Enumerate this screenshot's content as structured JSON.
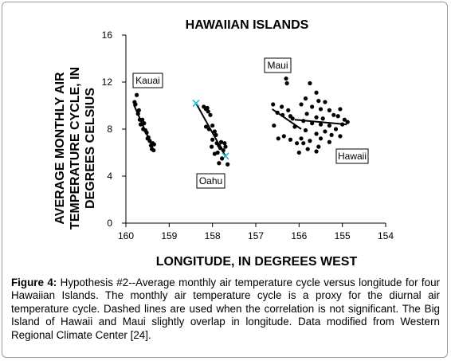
{
  "chart_data": {
    "type": "scatter",
    "title": "HAWAIIAN ISLANDS",
    "xlabel": "LONGITUDE, IN DEGREES WEST",
    "ylabel_lines": [
      "AVERAGE MONTHLY AIR",
      "TEMPERATURE CYCLE, IN",
      "DEGREES CELSIUS"
    ],
    "xlim": [
      160,
      154
    ],
    "ylim": [
      0,
      16
    ],
    "x_ticks": [
      "160",
      "159",
      "158",
      "157",
      "156",
      "155",
      "154"
    ],
    "y_ticks": [
      "0",
      "4",
      "8",
      "12",
      "16"
    ],
    "grid": false,
    "islands": [
      {
        "name": "Kauai",
        "points": [
          [
            159.75,
            10.9
          ],
          [
            159.8,
            10.3
          ],
          [
            159.78,
            10.1
          ],
          [
            159.7,
            9.6
          ],
          [
            159.72,
            9.3
          ],
          [
            159.68,
            8.8
          ],
          [
            159.62,
            8.8
          ],
          [
            159.66,
            8.4
          ],
          [
            159.58,
            8.5
          ],
          [
            159.55,
            7.9
          ],
          [
            159.52,
            7.7
          ],
          [
            159.48,
            7.3
          ],
          [
            159.45,
            7.0
          ],
          [
            159.42,
            6.6
          ],
          [
            159.4,
            6.3
          ],
          [
            159.38,
            6.8
          ],
          [
            159.36,
            6.2
          ],
          [
            159.35,
            6.7
          ],
          [
            159.5,
            7.2
          ],
          [
            159.6,
            8.0
          ]
        ],
        "fit": {
          "style": "solid",
          "from": [
            159.82,
            10.1
          ],
          "to": [
            159.38,
            6.4
          ]
        }
      },
      {
        "name": "Oahu",
        "points": [
          [
            158.2,
            9.9
          ],
          [
            158.15,
            9.7
          ],
          [
            158.12,
            9.8
          ],
          [
            158.1,
            9.5
          ],
          [
            158.05,
            9.2
          ],
          [
            158.15,
            8.2
          ],
          [
            158.08,
            8.0
          ],
          [
            158.0,
            8.3
          ],
          [
            157.95,
            7.8
          ],
          [
            157.92,
            7.5
          ],
          [
            158.02,
            6.5
          ],
          [
            157.9,
            6.8
          ],
          [
            157.85,
            6.6
          ],
          [
            157.82,
            6.4
          ],
          [
            157.88,
            6.0
          ],
          [
            157.8,
            6.9
          ],
          [
            157.78,
            5.5
          ],
          [
            157.75,
            6.2
          ],
          [
            157.72,
            6.8
          ],
          [
            157.7,
            6.5
          ],
          [
            157.85,
            5.1
          ],
          [
            157.65,
            5.0
          ],
          [
            157.95,
            5.9
          ],
          [
            158.0,
            7.1
          ]
        ],
        "fit": {
          "style": "dashed",
          "from": [
            158.38,
            10.2
          ],
          "to": [
            157.7,
            5.7
          ]
        }
      },
      {
        "name": "Maui",
        "points": [
          [
            156.3,
            12.3
          ],
          [
            156.28,
            11.9
          ],
          [
            156.6,
            10.1
          ],
          [
            156.4,
            9.9
          ],
          [
            156.25,
            9.6
          ],
          [
            156.5,
            9.4
          ],
          [
            156.2,
            9.1
          ],
          [
            156.15,
            8.9
          ],
          [
            156.58,
            8.3
          ],
          [
            156.35,
            7.4
          ],
          [
            156.48,
            7.2
          ],
          [
            156.2,
            7.1
          ],
          [
            156.05,
            6.8
          ],
          [
            156.1,
            8.2
          ],
          [
            156.38,
            9.2
          ]
        ],
        "fit": {
          "style": "solid",
          "from": [
            156.62,
            9.7
          ],
          "to": [
            155.95,
            8.0
          ]
        }
      },
      {
        "name": "Hawaii",
        "points": [
          [
            155.75,
            11.9
          ],
          [
            155.6,
            11.1
          ],
          [
            155.85,
            10.6
          ],
          [
            155.55,
            10.4
          ],
          [
            155.4,
            10.3
          ],
          [
            155.95,
            10.1
          ],
          [
            155.7,
            9.9
          ],
          [
            155.5,
            9.7
          ],
          [
            155.3,
            9.6
          ],
          [
            155.05,
            9.7
          ],
          [
            155.2,
            9.2
          ],
          [
            155.82,
            9.3
          ],
          [
            155.6,
            9.0
          ],
          [
            155.45,
            8.9
          ],
          [
            155.1,
            9.1
          ],
          [
            154.95,
            8.8
          ],
          [
            154.88,
            8.6
          ],
          [
            155.9,
            8.7
          ],
          [
            155.7,
            8.5
          ],
          [
            155.5,
            8.4
          ],
          [
            155.3,
            8.3
          ],
          [
            155.0,
            8.4
          ],
          [
            155.15,
            8.0
          ],
          [
            155.85,
            7.9
          ],
          [
            155.6,
            7.6
          ],
          [
            155.4,
            7.8
          ],
          [
            155.25,
            7.5
          ],
          [
            155.05,
            7.4
          ],
          [
            155.95,
            7.2
          ],
          [
            155.75,
            7.0
          ],
          [
            155.5,
            7.2
          ],
          [
            155.9,
            6.8
          ],
          [
            155.8,
            6.3
          ],
          [
            155.6,
            6.1
          ],
          [
            156.0,
            6.0
          ],
          [
            155.3,
            6.9
          ],
          [
            155.55,
            6.5
          ]
        ],
        "fit": {
          "style": "dashed",
          "from": [
            156.1,
            8.8
          ],
          "to": [
            154.9,
            8.4
          ]
        }
      }
    ],
    "annotations": [
      {
        "text": "Kauai"
      },
      {
        "text": "Oahu"
      },
      {
        "text": "Maui"
      },
      {
        "text": "Hawaii"
      }
    ]
  },
  "caption": {
    "label": "Figure 4:",
    "text": " Hypothesis #2--Average monthly air temperature cycle versus longitude for four Hawaiian Islands. The monthly air temperature cycle is a proxy for the diurnal air temperature cycle. Dashed lines are used when the correlation is not significant. The Big Island of Hawaii and Maui slightly overlap in longitude. Data modified from Western Regional Climate Center [24]."
  }
}
